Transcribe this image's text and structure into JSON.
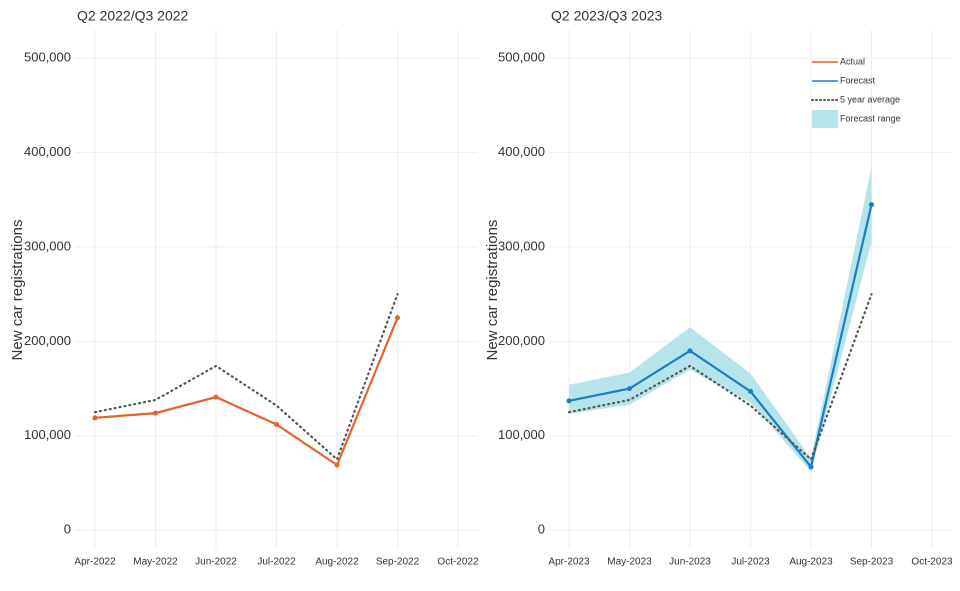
{
  "chart_data": [
    {
      "type": "line",
      "title": "Q2 2022/Q3 2022",
      "y_label": "New car registrations",
      "categories": [
        "Apr-2022",
        "May-2022",
        "Jun-2022",
        "Jul-2022",
        "Aug-2022",
        "Sep-2022",
        "Oct-2022"
      ],
      "series": [
        {
          "name": "Actual",
          "color": "#e8622a",
          "style": "solid",
          "values": [
            119000,
            124000,
            141000,
            112000,
            69000,
            225000,
            null
          ]
        },
        {
          "name": "5 year average",
          "color": "#555555",
          "style": "dotted",
          "values": [
            125000,
            138000,
            174000,
            132000,
            75000,
            250000,
            null
          ]
        }
      ],
      "ylim": [
        -20000,
        530000
      ],
      "yticks": [
        0,
        {
          "value": 100000,
          "label": "100,000"
        },
        {
          "value": 200000,
          "label": "200,000"
        },
        {
          "value": 300000,
          "label": "300,000"
        },
        {
          "value": 400000,
          "label": "400,000"
        },
        {
          "value": 500000,
          "label": "500,000"
        }
      ],
      "grid": true
    },
    {
      "type": "line",
      "title": "Q2 2023/Q3 2023",
      "y_label": "New car registrations",
      "categories": [
        "Apr-2023",
        "May-2023",
        "Jun-2023",
        "Jul-2023",
        "Aug-2023",
        "Sep-2023",
        "Oct-2023"
      ],
      "series": [
        {
          "name": "Actual",
          "color": "#e8622a",
          "style": "solid",
          "values": [
            null,
            null,
            null,
            null,
            null,
            null,
            null
          ]
        },
        {
          "name": "Forecast",
          "color": "#1a7fc1",
          "style": "solid",
          "values": [
            137000,
            150000,
            190000,
            147000,
            67000,
            345000,
            null
          ]
        },
        {
          "name": "5 year average",
          "color": "#555555",
          "style": "dotted",
          "values": [
            125000,
            138000,
            174000,
            132000,
            75000,
            250000,
            null
          ]
        },
        {
          "name": "Forecast range",
          "color": "#b5e5ea",
          "style": "band",
          "lower": [
            123000,
            133000,
            170000,
            135000,
            62000,
            305000,
            null
          ],
          "upper": [
            154000,
            167000,
            215000,
            166000,
            76000,
            385000,
            null
          ]
        }
      ],
      "ylim": [
        -20000,
        530000
      ],
      "yticks": [
        0,
        {
          "value": 100000,
          "label": "100,000"
        },
        {
          "value": 200000,
          "label": "200,000"
        },
        {
          "value": 300000,
          "label": "300,000"
        },
        {
          "value": 400000,
          "label": "400,000"
        },
        {
          "value": 500000,
          "label": "500,000"
        }
      ],
      "grid": true,
      "legend": "top-right"
    }
  ]
}
